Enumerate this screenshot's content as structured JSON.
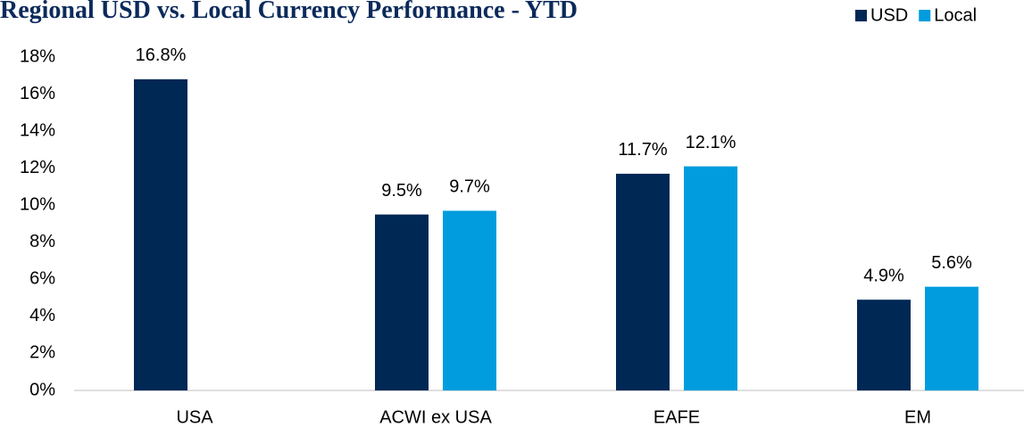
{
  "chart_data": {
    "type": "bar",
    "title": "Regional USD vs. Local Currency Performance - YTD",
    "categories": [
      "USA",
      "ACWI ex USA",
      "EAFE",
      "EM"
    ],
    "series": [
      {
        "name": "USD",
        "color": "#002855",
        "values": [
          16.8,
          9.5,
          11.7,
          4.9
        ],
        "value_labels": [
          "16.8%",
          "9.5%",
          "11.7%",
          "4.9%"
        ]
      },
      {
        "name": "Local",
        "color": "#009cde",
        "values": [
          null,
          9.7,
          12.1,
          5.6
        ],
        "value_labels": [
          null,
          "9.7%",
          "12.1%",
          "5.6%"
        ]
      }
    ],
    "ylim": [
      0,
      18
    ],
    "yticks": [
      {
        "value": 0,
        "label": "0%"
      },
      {
        "value": 2,
        "label": "2%"
      },
      {
        "value": 4,
        "label": "4%"
      },
      {
        "value": 6,
        "label": "6%"
      },
      {
        "value": 8,
        "label": "8%"
      },
      {
        "value": 10,
        "label": "10%"
      },
      {
        "value": 12,
        "label": "12%"
      },
      {
        "value": 14,
        "label": "14%"
      },
      {
        "value": 16,
        "label": "16%"
      },
      {
        "value": 18,
        "label": "18%"
      }
    ],
    "grid": false,
    "legend": "top-right"
  }
}
